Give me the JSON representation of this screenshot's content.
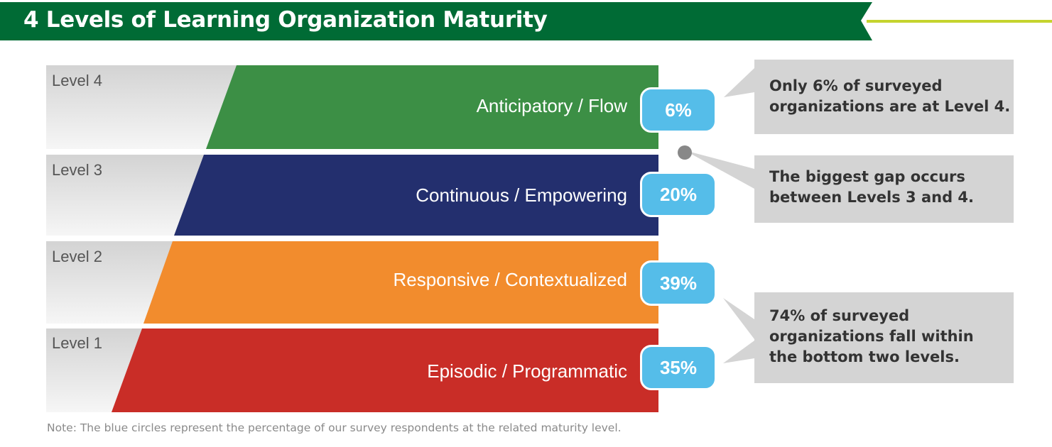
{
  "title": "4 Levels of Learning Organization Maturity",
  "colors": {
    "header_green": "#006b35",
    "accent_lime": "#c5d42e",
    "level4": "#3c8f45",
    "level3": "#232f6e",
    "level2": "#f28c2d",
    "level1": "#c92d27",
    "badge_blue": "#55bde9",
    "callout_gray": "#d4d4d4"
  },
  "levels": [
    {
      "label": "Level 4",
      "name": "Anticipatory / Flow",
      "percent": "6%",
      "value": 6
    },
    {
      "label": "Level 3",
      "name": "Continuous / Empowering",
      "percent": "20%",
      "value": 20
    },
    {
      "label": "Level 2",
      "name": "Responsive / Contextualized",
      "percent": "39%",
      "value": 39
    },
    {
      "label": "Level 1",
      "name": "Episodic / Programmatic",
      "percent": "35%",
      "value": 35
    }
  ],
  "callouts": [
    {
      "text": "Only 6% of surveyed\norganizations are at Level 4."
    },
    {
      "text": "The biggest gap occurs\nbetween Levels 3 and 4."
    },
    {
      "text": "74% of surveyed\norganizations fall within\nthe bottom two levels."
    }
  ],
  "note": "Note: The blue circles represent the percentage of our survey respondents at the related maturity level."
}
